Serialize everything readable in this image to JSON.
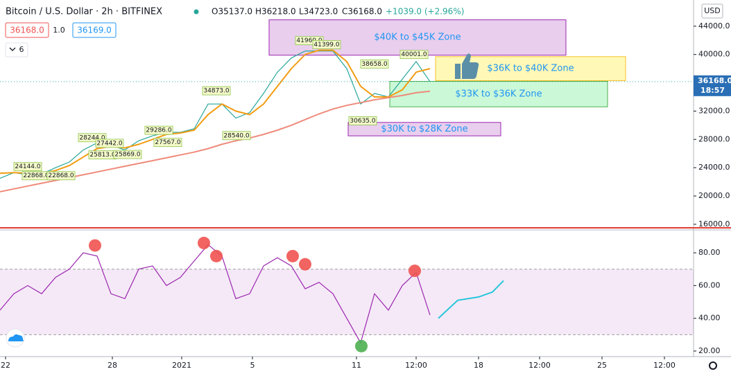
{
  "header": {
    "title": "Bitcoin / U.S. Dollar · 2h · BITFINEX",
    "values": [
      "O35137.0",
      "H36218.0",
      "L34723.0",
      "C36168.0",
      "+1039.0 (+2.96%)"
    ],
    "sell": "36168.0",
    "size": "1.0",
    "buy": "36169.0",
    "indicators": "6",
    "currency": "USD",
    "countdown": "18:57"
  },
  "chart_data": [
    {
      "type": "line",
      "xlim": [
        0,
        100
      ],
      "ylim": [
        15600,
        47700
      ],
      "yticks": [
        {
          "value": 44000,
          "label": "44000.0"
        },
        {
          "value": 40000,
          "label": "40000.0"
        },
        {
          "value": 36000,
          "label": "36000.0"
        },
        {
          "value": 32000,
          "label": "32000.0"
        },
        {
          "value": 28000,
          "label": "28000.0"
        },
        {
          "value": 24000,
          "label": "24000.0"
        },
        {
          "value": 20000,
          "label": "20000.0"
        },
        {
          "value": 16000,
          "label": "16000.0"
        }
      ],
      "xticks": [
        {
          "value": 0.8,
          "label": "22"
        },
        {
          "value": 16.2,
          "label": "28"
        },
        {
          "value": 26.2,
          "label": "2021"
        },
        {
          "value": 36.4,
          "label": "5"
        },
        {
          "value": 51.4,
          "label": "11"
        },
        {
          "value": 60,
          "label": "12:00"
        },
        {
          "value": 69,
          "label": "18"
        },
        {
          "value": 77.8,
          "label": "12:00"
        },
        {
          "value": 86.8,
          "label": "25"
        },
        {
          "value": 95.8,
          "label": "12:00"
        }
      ],
      "grid": false,
      "x": [
        0,
        2,
        4,
        6,
        8,
        10,
        12,
        14,
        16,
        18,
        20,
        22,
        24,
        26,
        28,
        30,
        32,
        34,
        36,
        38,
        40,
        42,
        44,
        46,
        48,
        50,
        52,
        54,
        56,
        58,
        60,
        62
      ],
      "series": [
        {
          "color": "#26a69a",
          "values": [
            22500,
            23300,
            23000,
            23100,
            24000,
            24800,
            26500,
            27500,
            27200,
            26500,
            27800,
            28500,
            29000,
            29000,
            29500,
            33000,
            33000,
            31000,
            31800,
            34500,
            37500,
            39500,
            40500,
            40500,
            40500,
            38000,
            33000,
            34500,
            34000,
            36500,
            39000,
            36168
          ]
        },
        {
          "color": "#f39c12",
          "values": [
            23200,
            23300,
            23200,
            23200,
            23600,
            24300,
            25500,
            26700,
            27000,
            26800,
            27300,
            28000,
            28700,
            28900,
            29300,
            31500,
            33000,
            32000,
            31500,
            33000,
            35500,
            38000,
            40000,
            40600,
            40600,
            39000,
            35500,
            34000,
            34000,
            35000,
            37500,
            38000
          ]
        },
        {
          "color": "#ef8a7a",
          "values": [
            20600,
            21000,
            21400,
            21800,
            22200,
            22600,
            23000,
            23400,
            23800,
            24200,
            24600,
            25000,
            25400,
            25800,
            26200,
            26700,
            27300,
            27800,
            28200,
            28700,
            29300,
            30000,
            30800,
            31600,
            32300,
            32800,
            33200,
            33600,
            33900,
            34200,
            34600,
            34800
          ]
        }
      ],
      "last_price": {
        "value": 36168,
        "label": "36168.0"
      },
      "annotations": [
        {
          "x": 4,
          "value": 24144,
          "label": "24144.0"
        },
        {
          "x": 5.2,
          "value": 22868,
          "label": "22868.0"
        },
        {
          "x": 8.8,
          "value": 22868,
          "label": "22868.0"
        },
        {
          "x": 13.3,
          "value": 28244,
          "label": "28244.0"
        },
        {
          "x": 15.8,
          "value": 27442,
          "label": "27442.0"
        },
        {
          "x": 14.8,
          "value": 25813,
          "label": "25813.0"
        },
        {
          "x": 18.4,
          "value": 25869,
          "label": "25869.0"
        },
        {
          "x": 22.9,
          "value": 29286,
          "label": "29286.0"
        },
        {
          "x": 24.2,
          "value": 27567,
          "label": "27567.0"
        },
        {
          "x": 31.2,
          "value": 34873,
          "label": "34873.0"
        },
        {
          "x": 34.1,
          "value": 28540,
          "label": "28540.0"
        },
        {
          "x": 44.6,
          "value": 41960,
          "label": "41960.0"
        },
        {
          "x": 47.1,
          "value": 41399,
          "label": "41399.0"
        },
        {
          "x": 52.3,
          "value": 30635,
          "label": "30635.0"
        },
        {
          "x": 54,
          "value": 38658,
          "label": "38658.0"
        },
        {
          "x": 59.7,
          "value": 40001,
          "label": "40001.0"
        }
      ],
      "zones": [
        {
          "label": "$40K to $45K Zone",
          "range": [
            39900,
            44900
          ],
          "xrange": [
            38.8,
            81.6
          ],
          "fill": "#e1bee7",
          "stroke": "#9c27b0"
        },
        {
          "label": "$36K to $40K Zone",
          "range": [
            36300,
            39700
          ],
          "xrange": [
            62.8,
            90.2
          ],
          "fill": "#fff59d",
          "stroke": "#fbc02d"
        },
        {
          "label": "$33K to $36K Zone",
          "range": [
            32600,
            36200
          ],
          "xrange": [
            56.2,
            87.6
          ],
          "fill": "#b9f6ca",
          "stroke": "#4caf50"
        },
        {
          "label": "$30K to $28K Zone",
          "range": [
            28500,
            30400
          ],
          "xrange": [
            50.2,
            72.2
          ],
          "fill": "#e1bee7",
          "stroke": "#9c27b0"
        }
      ]
    },
    {
      "type": "line",
      "xlim": [
        0,
        100
      ],
      "ylim": [
        16.6,
        94
      ],
      "yticks": [
        {
          "value": 80,
          "label": "80.00"
        },
        {
          "value": 60,
          "label": "60.00"
        },
        {
          "value": 40,
          "label": "40.00"
        },
        {
          "value": 20,
          "label": "20.00"
        }
      ],
      "band": [
        30,
        70
      ],
      "grid": false,
      "x": [
        0,
        2,
        4,
        6,
        8,
        10,
        12,
        14,
        16,
        18,
        20,
        22,
        24,
        26,
        28,
        30,
        32,
        34,
        36,
        38,
        40,
        42,
        44,
        46,
        48,
        50,
        52,
        54,
        56,
        58,
        60,
        62
      ],
      "series": [
        {
          "color": "#9c27b0",
          "values": [
            45,
            55,
            60,
            55,
            65,
            70,
            80,
            78,
            55,
            52,
            70,
            72,
            60,
            65,
            75,
            85,
            78,
            52,
            55,
            72,
            77,
            72,
            58,
            62,
            55,
            40,
            25,
            55,
            45,
            60,
            68,
            42
          ]
        },
        {
          "color": "#26c6da",
          "x": [
            63.2,
            66,
            69,
            71,
            72.6
          ],
          "values": [
            40,
            51,
            53,
            56,
            63
          ]
        }
      ],
      "markers": [
        {
          "x": 13.7,
          "value": 84.5,
          "color": "#ef5350"
        },
        {
          "x": 29.4,
          "value": 86,
          "color": "#ef5350"
        },
        {
          "x": 31.2,
          "value": 78,
          "color": "#ef5350"
        },
        {
          "x": 42.2,
          "value": 78,
          "color": "#ef5350"
        },
        {
          "x": 44,
          "value": 73,
          "color": "#ef5350"
        },
        {
          "x": 59.8,
          "value": 69,
          "color": "#ef5350"
        },
        {
          "x": 52.1,
          "value": 23,
          "color": "#4caf50"
        }
      ]
    }
  ]
}
